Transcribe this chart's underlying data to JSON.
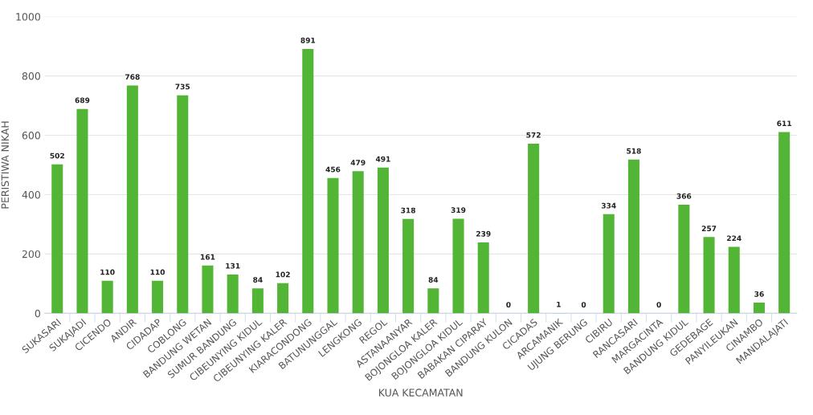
{
  "chart_data": {
    "type": "bar",
    "xlabel": "KUA KECAMATAN",
    "ylabel": "PERISTIWA NIKAH",
    "categories": [
      "SUKASARI",
      "SUKAJADI",
      "CICENDO",
      "ANDIR",
      "CIDADAP",
      "COBLONG",
      "BANDUNG WETAN",
      "SUMUR BANDUNG",
      "CIBEUNYING KIDUL",
      "CIBEUNYING KALER",
      "KIARACONDONG",
      "BATUNUNGGAL",
      "LENGKONG",
      "REGOL",
      "ASTANAANYAR",
      "BOJONGLOA KALER",
      "BOJONGLOA KIDUL",
      "BABAKAN CIPARAY",
      "BANDUNG KULON",
      "CICADAS",
      "ARCAMANIK",
      "UJUNG BERUNG",
      "CIBIRU",
      "RANCASARI",
      "MARGACINTA",
      "BANDUNG KIDUL",
      "GEDEBAGE",
      "PANYILEUKAN",
      "CINAMBO",
      "MANDALAJATI"
    ],
    "values": [
      502,
      689,
      110,
      768,
      110,
      735,
      161,
      131,
      84,
      102,
      891,
      456,
      479,
      491,
      318,
      84,
      319,
      239,
      0,
      572,
      1,
      0,
      334,
      518,
      0,
      366,
      257,
      224,
      36,
      611
    ],
    "color": "#52b535",
    "ylim": [
      0,
      1000
    ],
    "yticks": [
      0,
      200,
      400,
      600,
      800,
      1000
    ],
    "grid": "y",
    "data_labels": true
  }
}
